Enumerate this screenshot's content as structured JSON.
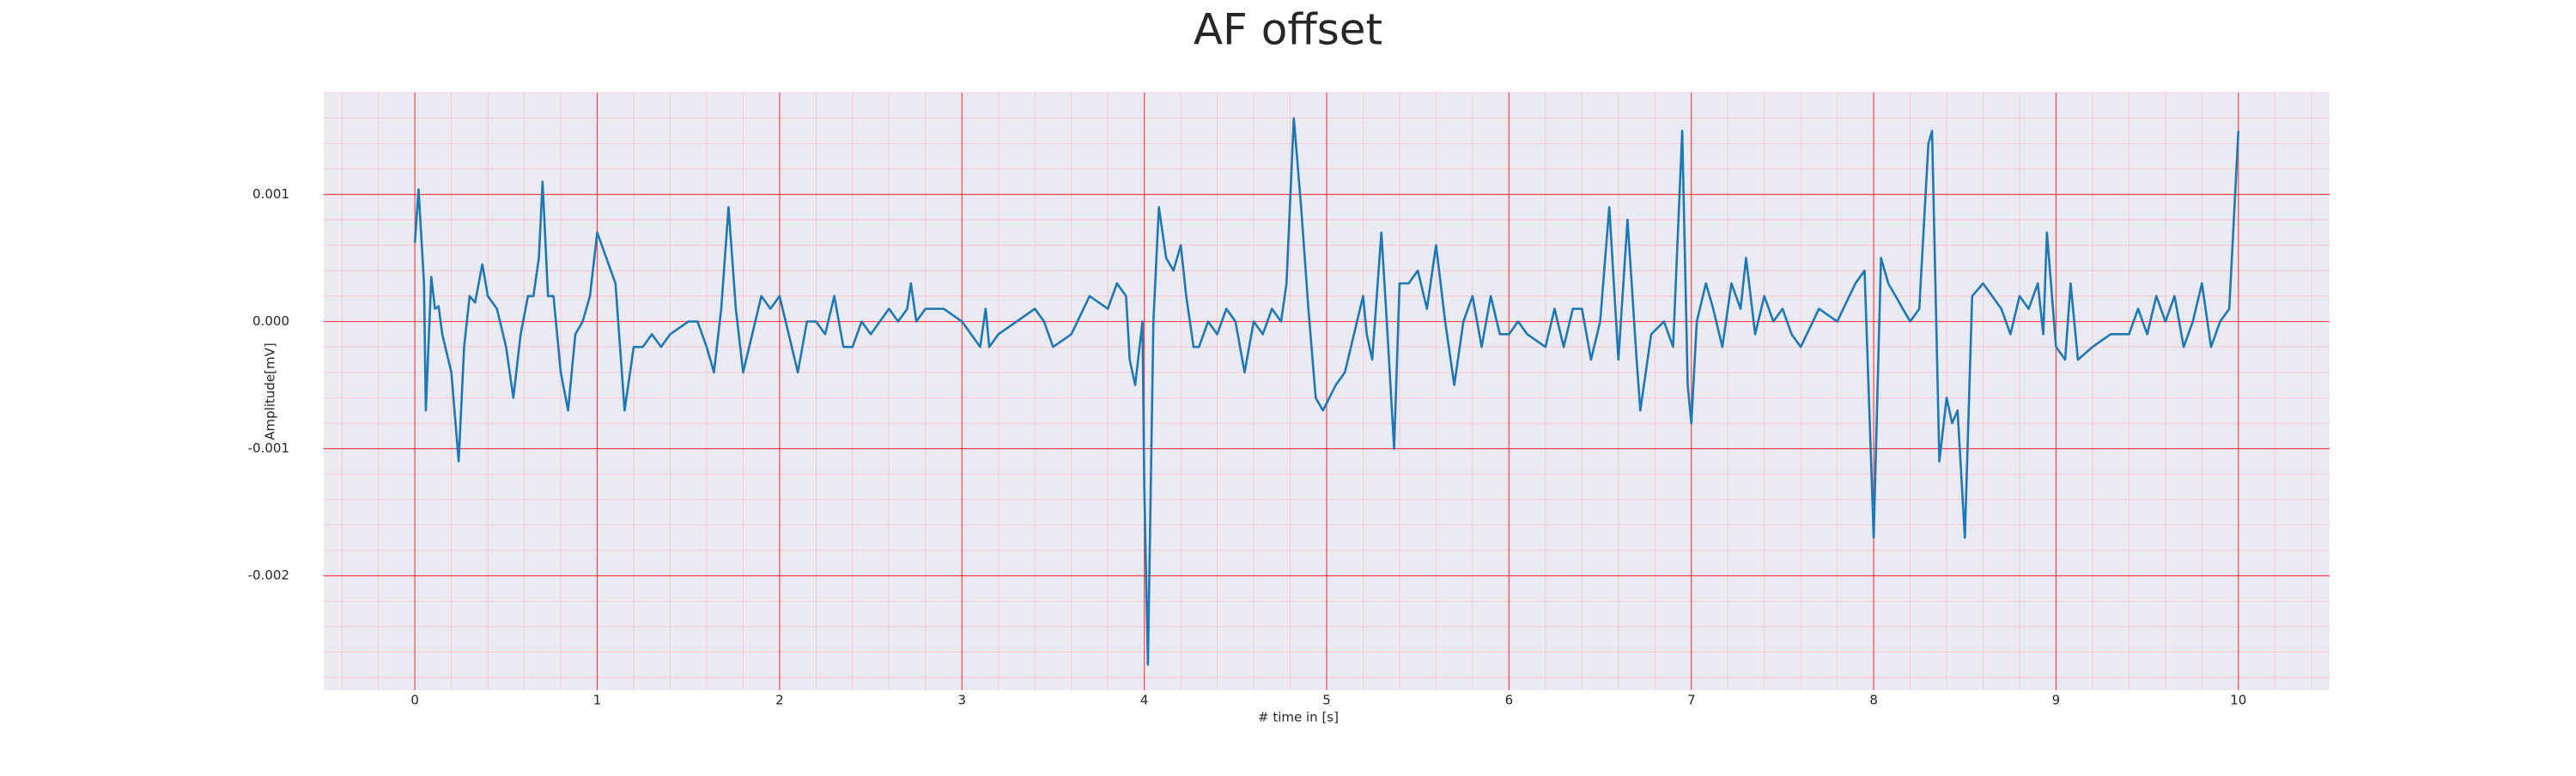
{
  "chart_data": {
    "type": "line",
    "title": "AF offset",
    "xlabel": "# time in [s]",
    "ylabel": "Amplitude[mV]",
    "color": "#1f77b4",
    "grid": true,
    "minor_grid": true,
    "xlim": [
      -0.5,
      10.5
    ],
    "ylim": [
      -0.0029,
      0.0018
    ],
    "xticks": [
      0,
      1,
      2,
      3,
      4,
      5,
      6,
      7,
      8,
      9,
      10
    ],
    "yticks": [
      -0.002,
      -0.001,
      {
        "value": 0,
        "label": "0.000"
      },
      0.001
    ],
    "x": [
      0,
      0.02,
      0.05,
      0.06,
      0.09,
      0.11,
      0.13,
      0.15,
      0.2,
      0.24,
      0.27,
      0.3,
      0.33,
      0.37,
      0.4,
      0.45,
      0.5,
      0.54,
      0.58,
      0.62,
      0.65,
      0.68,
      0.7,
      0.73,
      0.76,
      0.8,
      0.84,
      0.88,
      0.92,
      0.96,
      1,
      1.05,
      1.1,
      1.15,
      1.2,
      1.25,
      1.3,
      1.35,
      1.4,
      1.5,
      1.55,
      1.6,
      1.64,
      1.68,
      1.72,
      1.76,
      1.8,
      1.85,
      1.9,
      1.95,
      2,
      2.05,
      2.1,
      2.15,
      2.2,
      2.25,
      2.3,
      2.35,
      2.4,
      2.45,
      2.5,
      2.55,
      2.6,
      2.65,
      2.7,
      2.72,
      2.75,
      2.8,
      2.9,
      3,
      3.05,
      3.1,
      3.13,
      3.15,
      3.2,
      3.3,
      3.4,
      3.45,
      3.5,
      3.6,
      3.7,
      3.8,
      3.85,
      3.9,
      3.92,
      3.95,
      3.99,
      4,
      4.02,
      4.05,
      4.08,
      4.12,
      4.16,
      4.2,
      4.23,
      4.27,
      4.3,
      4.35,
      4.4,
      4.45,
      4.5,
      4.55,
      4.6,
      4.65,
      4.7,
      4.75,
      4.78,
      4.82,
      4.86,
      4.9,
      4.94,
      4.98,
      5.05,
      5.1,
      5.15,
      5.2,
      5.22,
      5.25,
      5.3,
      5.33,
      5.37,
      5.4,
      5.45,
      5.5,
      5.55,
      5.6,
      5.65,
      5.7,
      5.75,
      5.8,
      5.85,
      5.9,
      5.95,
      6,
      6.05,
      6.1,
      6.2,
      6.25,
      6.3,
      6.35,
      6.4,
      6.45,
      6.5,
      6.55,
      6.6,
      6.65,
      6.7,
      6.72,
      6.78,
      6.85,
      6.9,
      6.95,
      6.98,
      7,
      7.03,
      7.08,
      7.12,
      7.17,
      7.22,
      7.27,
      7.3,
      7.35,
      7.4,
      7.45,
      7.5,
      7.55,
      7.6,
      7.7,
      7.8,
      7.9,
      7.95,
      8,
      8.04,
      8.08,
      8.12,
      8.2,
      8.25,
      8.3,
      8.32,
      8.36,
      8.4,
      8.43,
      8.46,
      8.5,
      8.54,
      8.6,
      8.7,
      8.75,
      8.8,
      8.85,
      8.9,
      8.93,
      8.95,
      9,
      9.05,
      9.08,
      9.12,
      9.2,
      9.3,
      9.4,
      9.45,
      9.5,
      9.55,
      9.6,
      9.65,
      9.7,
      9.75,
      9.8,
      9.85,
      9.9,
      9.95,
      10
    ],
    "values": [
      0.00062,
      0.00104,
      0.0003,
      -0.0007,
      0.00035,
      0.0001,
      0.00012,
      -0.0001,
      -0.0004,
      -0.0011,
      -0.0002,
      0.0002,
      0.00015,
      0.00045,
      0.0002,
      0.0001,
      -0.0002,
      -0.0006,
      -0.0001,
      0.0002,
      0.0002,
      0.0005,
      0.0011,
      0.0002,
      0.0002,
      -0.0004,
      -0.0007,
      -0.0001,
      0,
      0.0002,
      0.0007,
      0.0005,
      0.0003,
      -0.0007,
      -0.0002,
      -0.0002,
      -0.0001,
      -0.0002,
      -0.0001,
      0,
      0,
      -0.0002,
      -0.0004,
      0.0001,
      0.0009,
      0.0001,
      -0.0004,
      -0.0001,
      0.0002,
      0.0001,
      0.0002,
      -0.0001,
      -0.0004,
      0,
      0,
      -0.0001,
      0.0002,
      -0.0002,
      -0.0002,
      0,
      -0.0001,
      0,
      0.0001,
      0,
      0.0001,
      0.0003,
      0,
      0.0001,
      0.0001,
      0,
      -0.0001,
      -0.0002,
      0.0001,
      -0.0002,
      -0.0001,
      0,
      0.0001,
      0,
      -0.0002,
      -0.0001,
      0.0002,
      0.0001,
      0.0003,
      0.0002,
      -0.0003,
      -0.0005,
      0,
      -0.0013,
      -0.0027,
      0,
      0.0009,
      0.0005,
      0.0004,
      0.0006,
      0.0002,
      -0.0002,
      -0.0002,
      0,
      -0.0001,
      0.0001,
      0,
      -0.0004,
      0,
      -0.0001,
      0.0001,
      0,
      0.0003,
      0.0016,
      0.0009,
      0.0001,
      -0.0006,
      -0.0007,
      -0.0005,
      -0.0004,
      -0.0001,
      0.0002,
      -0.0001,
      -0.0003,
      0.0007,
      0,
      -0.001,
      0.0003,
      0.0003,
      0.0004,
      0.0001,
      0.0006,
      0,
      -0.0005,
      0,
      0.0002,
      -0.0002,
      0.0002,
      -0.0001,
      -0.0001,
      0,
      -0.0001,
      -0.0002,
      0.0001,
      -0.0002,
      0.0001,
      0.0001,
      -0.0003,
      0,
      0.0009,
      -0.0003,
      0.0008,
      -0.0003,
      -0.0007,
      -0.0001,
      0,
      -0.0002,
      0.0015,
      -0.0005,
      -0.0008,
      0,
      0.0003,
      0.0001,
      -0.0002,
      0.0003,
      0.0001,
      0.0005,
      -0.0001,
      0.0002,
      0,
      0.0001,
      -0.0001,
      -0.0002,
      0.0001,
      0,
      0.0003,
      0.0004,
      -0.0017,
      0.0005,
      0.0003,
      0.0002,
      0,
      0.0001,
      0.0014,
      0.0015,
      -0.0011,
      -0.0006,
      -0.0008,
      -0.0007,
      -0.0017,
      0.0002,
      0.0003,
      0.0001,
      -0.0001,
      0.0002,
      0.0001,
      0.0003,
      -0.0001,
      0.0007,
      -0.0002,
      -0.0003,
      0.0003,
      -0.0003,
      -0.0002,
      -0.0001,
      -0.0001,
      0.0001,
      -0.0001,
      0.0002,
      0,
      0.0002,
      -0.0002,
      0,
      0.0003,
      -0.0002,
      0,
      0.0001,
      0.0015
    ]
  }
}
